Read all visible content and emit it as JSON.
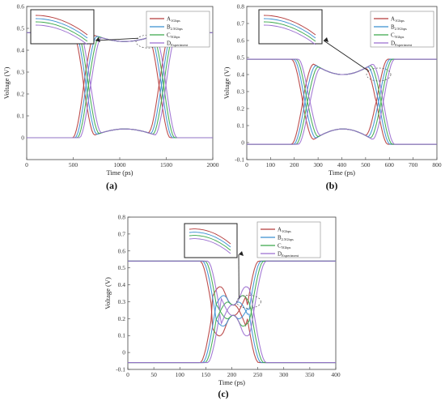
{
  "chart_data": [
    {
      "id": "a",
      "type": "line",
      "panel_label": "(a)",
      "xlabel": "Time (ps)",
      "ylabel": "Voltage (V)",
      "xlim": [
        0,
        2000
      ],
      "ylim": [
        -0.1,
        0.6
      ],
      "xticks": [
        0,
        500,
        1000,
        1500,
        2000
      ],
      "yticks": [
        0,
        0.1,
        0.2,
        0.3,
        0.4,
        0.5,
        0.6
      ],
      "series": [
        {
          "name": "A",
          "sub": "1Gbps",
          "color": "#b53a3a"
        },
        {
          "name": "B",
          "sub": "2.5Gbps",
          "color": "#3a8fd1"
        },
        {
          "name": "C",
          "sub": "5Gbps",
          "color": "#3aa84a"
        },
        {
          "name": "D",
          "sub": "Experiment",
          "color": "#9b6ed0"
        }
      ],
      "eye": {
        "high": 0.48,
        "low": 0.0,
        "cross1_x": 650,
        "cross2_x": 1460,
        "cross_v": 0.24,
        "mid_high": 0.44,
        "mid_low": 0.04
      },
      "legend": "top-right",
      "inset": true
    },
    {
      "id": "b",
      "type": "line",
      "panel_label": "(b)",
      "xlabel": "Time (ps)",
      "ylabel": "Voltage (V)",
      "xlim": [
        0,
        800
      ],
      "ylim": [
        -0.1,
        0.8
      ],
      "xticks": [
        0,
        100,
        200,
        300,
        400,
        500,
        600,
        700,
        800
      ],
      "yticks": [
        -0.1,
        0,
        0.1,
        0.2,
        0.3,
        0.4,
        0.5,
        0.6,
        0.7,
        0.8
      ],
      "series": [
        {
          "name": "A",
          "sub": "1Gbps",
          "color": "#b53a3a"
        },
        {
          "name": "B",
          "sub": "2.5Gbps",
          "color": "#3a8fd1"
        },
        {
          "name": "C",
          "sub": "5Gbps",
          "color": "#3aa84a"
        },
        {
          "name": "D",
          "sub": "Experiment",
          "color": "#9b6ed0"
        }
      ],
      "eye": {
        "high": 0.49,
        "low": -0.01,
        "cross1_x": 250,
        "cross2_x": 560,
        "cross_v": 0.25,
        "mid_high": 0.4,
        "mid_low": 0.08
      },
      "legend": "top-right",
      "inset": true
    },
    {
      "id": "c",
      "type": "line",
      "panel_label": "(c)",
      "xlabel": "Time (ps)",
      "ylabel": "Voltage (V)",
      "xlim": [
        0,
        400
      ],
      "ylim": [
        -0.1,
        0.8
      ],
      "xticks": [
        0,
        50,
        100,
        150,
        200,
        250,
        300,
        350,
        400
      ],
      "yticks": [
        -0.1,
        0,
        0.1,
        0.2,
        0.3,
        0.4,
        0.5,
        0.6,
        0.7,
        0.8
      ],
      "series": [
        {
          "name": "A",
          "sub": "1Gbps",
          "color": "#b53a3a"
        },
        {
          "name": "B",
          "sub": "2.5Gbps",
          "color": "#3a8fd1"
        },
        {
          "name": "C",
          "sub": "5Gbps",
          "color": "#3aa84a"
        },
        {
          "name": "D",
          "sub": "Experiment",
          "color": "#9b6ed0"
        }
      ],
      "eye": {
        "high": 0.54,
        "low": -0.06,
        "cross1_x": 170,
        "cross2_x": 235,
        "cross_v": 0.24,
        "mid_high": 0.28,
        "mid_low": 0.22
      },
      "legend": "top-right",
      "inset": true
    }
  ]
}
